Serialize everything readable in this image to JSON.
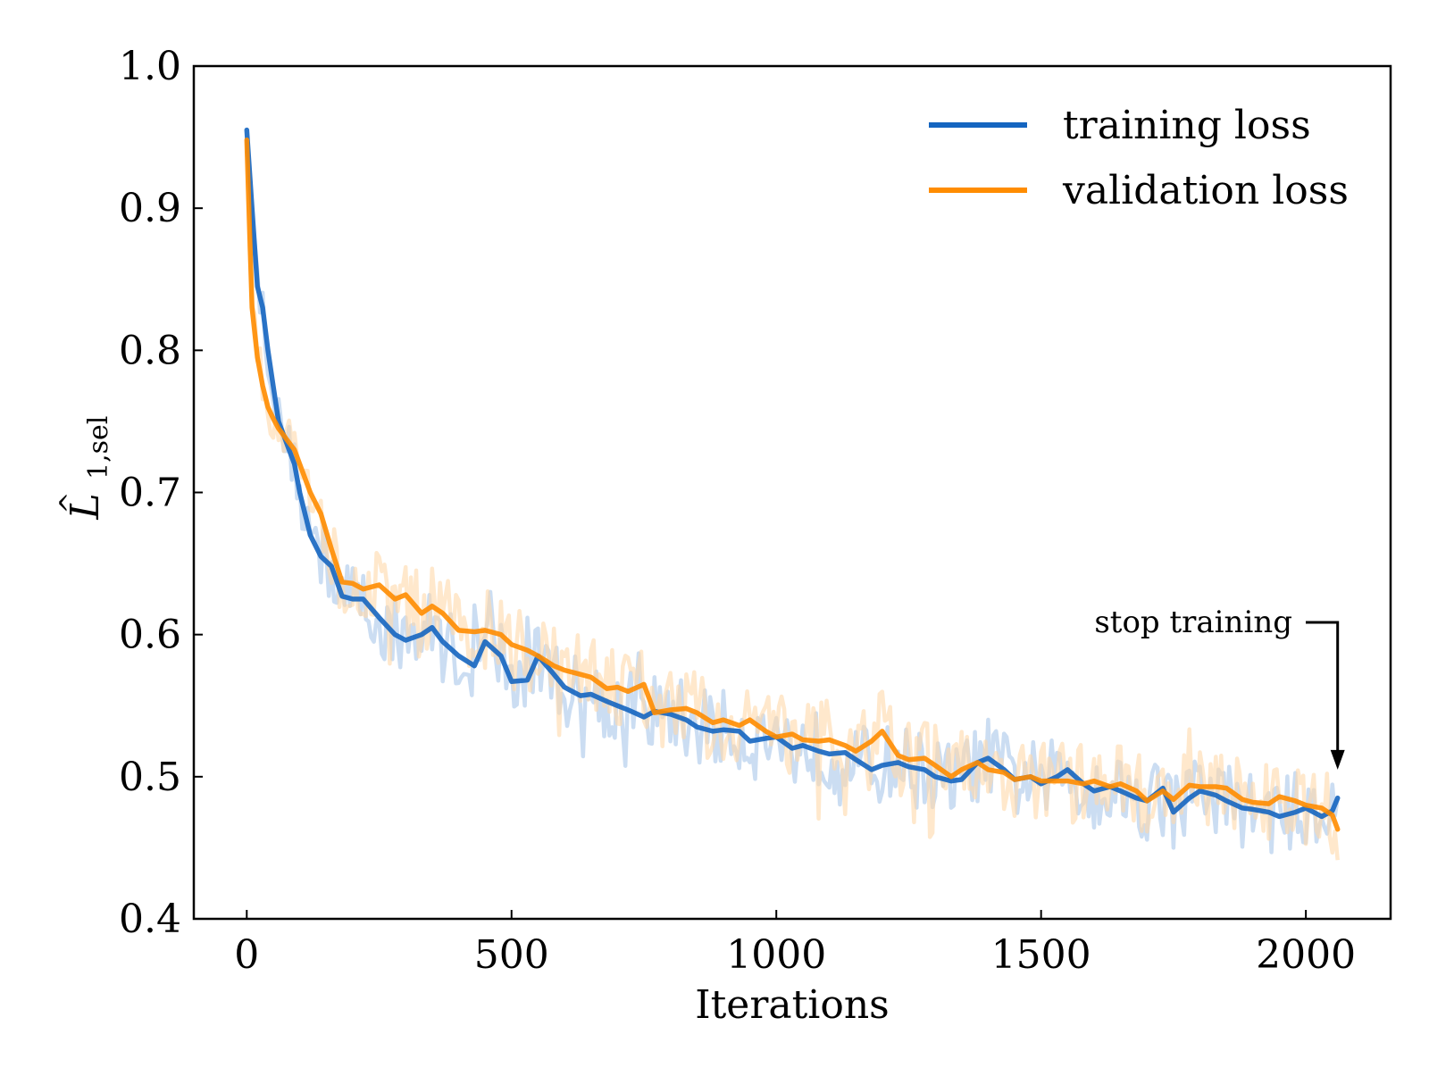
{
  "chart_data": {
    "type": "line",
    "xlabel": "Iterations",
    "ylabel_main": "L",
    "ylabel_hat": "^",
    "ylabel_sub": "1,sel",
    "xlim": [
      -100,
      2160
    ],
    "ylim": [
      0.4,
      1.0
    ],
    "x_ticks": [
      0,
      500,
      1000,
      1500,
      2000
    ],
    "x_tick_labels": [
      "0",
      "500",
      "1000",
      "1500",
      "2000"
    ],
    "y_ticks": [
      0.4,
      0.5,
      0.6,
      0.7,
      0.8,
      0.9,
      1.0
    ],
    "y_tick_labels": [
      "0.4",
      "0.5",
      "0.6",
      "0.7",
      "0.8",
      "0.9",
      "1.0"
    ],
    "grid": false,
    "legend_position": "top-right",
    "series": [
      {
        "name": "training loss",
        "color": "#1565c0",
        "raw_color": "#a9c7ea",
        "x": [
          0,
          10,
          20,
          30,
          40,
          50,
          60,
          70,
          80,
          90,
          100,
          120,
          140,
          160,
          180,
          200,
          220,
          250,
          280,
          300,
          330,
          350,
          370,
          400,
          430,
          450,
          480,
          500,
          530,
          550,
          580,
          600,
          630,
          650,
          680,
          700,
          720,
          750,
          770,
          800,
          830,
          850,
          880,
          900,
          930,
          950,
          980,
          1000,
          1030,
          1050,
          1080,
          1100,
          1130,
          1150,
          1180,
          1200,
          1230,
          1250,
          1280,
          1300,
          1330,
          1350,
          1380,
          1400,
          1430,
          1450,
          1480,
          1500,
          1530,
          1550,
          1580,
          1600,
          1630,
          1650,
          1680,
          1700,
          1730,
          1750,
          1780,
          1800,
          1830,
          1850,
          1880,
          1900,
          1930,
          1950,
          1980,
          2000,
          2030,
          2050,
          2060
        ],
        "values": [
          0.955,
          0.9,
          0.845,
          0.83,
          0.8,
          0.775,
          0.75,
          0.74,
          0.73,
          0.72,
          0.7,
          0.67,
          0.655,
          0.648,
          0.627,
          0.625,
          0.625,
          0.612,
          0.6,
          0.596,
          0.6,
          0.605,
          0.595,
          0.585,
          0.578,
          0.595,
          0.585,
          0.567,
          0.568,
          0.585,
          0.572,
          0.563,
          0.557,
          0.558,
          0.553,
          0.55,
          0.547,
          0.542,
          0.546,
          0.544,
          0.54,
          0.535,
          0.532,
          0.533,
          0.532,
          0.525,
          0.527,
          0.528,
          0.52,
          0.522,
          0.518,
          0.516,
          0.517,
          0.512,
          0.505,
          0.508,
          0.51,
          0.507,
          0.505,
          0.5,
          0.497,
          0.498,
          0.51,
          0.513,
          0.505,
          0.498,
          0.5,
          0.495,
          0.5,
          0.505,
          0.495,
          0.49,
          0.493,
          0.49,
          0.485,
          0.483,
          0.492,
          0.475,
          0.485,
          0.49,
          0.487,
          0.483,
          0.478,
          0.477,
          0.475,
          0.472,
          0.475,
          0.478,
          0.472,
          0.476,
          0.485
        ]
      },
      {
        "name": "validation loss",
        "color": "#ff8c00",
        "raw_color": "#ffd9aa",
        "x": [
          0,
          10,
          20,
          30,
          40,
          50,
          60,
          70,
          80,
          90,
          100,
          120,
          140,
          160,
          180,
          200,
          220,
          250,
          280,
          300,
          330,
          350,
          370,
          400,
          430,
          450,
          480,
          500,
          530,
          550,
          580,
          600,
          630,
          650,
          680,
          700,
          720,
          750,
          770,
          800,
          830,
          850,
          880,
          900,
          930,
          950,
          980,
          1000,
          1030,
          1050,
          1080,
          1100,
          1130,
          1150,
          1180,
          1200,
          1230,
          1250,
          1280,
          1300,
          1330,
          1350,
          1380,
          1400,
          1430,
          1450,
          1480,
          1500,
          1530,
          1550,
          1580,
          1600,
          1630,
          1650,
          1680,
          1700,
          1730,
          1750,
          1780,
          1800,
          1830,
          1850,
          1880,
          1900,
          1930,
          1950,
          1980,
          2000,
          2030,
          2050,
          2060
        ],
        "values": [
          0.948,
          0.83,
          0.795,
          0.775,
          0.76,
          0.752,
          0.745,
          0.74,
          0.735,
          0.73,
          0.72,
          0.7,
          0.685,
          0.66,
          0.637,
          0.636,
          0.632,
          0.635,
          0.625,
          0.628,
          0.615,
          0.62,
          0.615,
          0.603,
          0.602,
          0.603,
          0.6,
          0.593,
          0.589,
          0.585,
          0.578,
          0.575,
          0.572,
          0.57,
          0.562,
          0.563,
          0.56,
          0.565,
          0.545,
          0.547,
          0.548,
          0.545,
          0.538,
          0.54,
          0.536,
          0.54,
          0.532,
          0.528,
          0.53,
          0.526,
          0.525,
          0.526,
          0.522,
          0.518,
          0.525,
          0.532,
          0.515,
          0.512,
          0.513,
          0.508,
          0.5,
          0.505,
          0.51,
          0.505,
          0.503,
          0.498,
          0.5,
          0.497,
          0.497,
          0.497,
          0.495,
          0.497,
          0.493,
          0.495,
          0.49,
          0.483,
          0.49,
          0.484,
          0.494,
          0.493,
          0.493,
          0.492,
          0.484,
          0.482,
          0.481,
          0.486,
          0.483,
          0.48,
          0.478,
          0.473,
          0.463
        ]
      }
    ],
    "annotation": {
      "text": "stop training",
      "x": 2060,
      "y": 0.505
    }
  }
}
